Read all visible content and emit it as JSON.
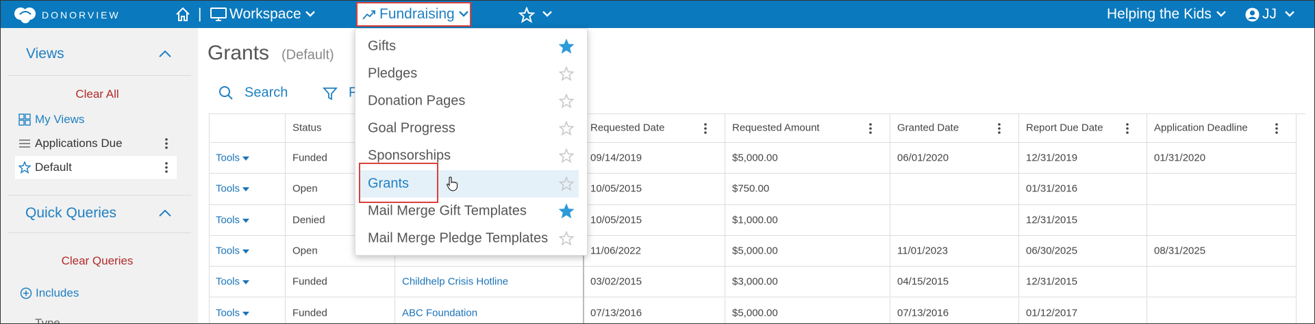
{
  "topbar": {
    "logo": "DONORVIEW",
    "separator": "|",
    "workspace": "Workspace",
    "fundraising": "Fundraising",
    "organization": "Helping the Kids",
    "user": "JJ"
  },
  "sidebar": {
    "views_title": "Views",
    "clear_all": "Clear All",
    "views": [
      {
        "label": "My Views",
        "icon": "grid",
        "menu": false
      },
      {
        "label": "Applications Due",
        "icon": "list",
        "menu": true
      },
      {
        "label": "Default",
        "icon": "star",
        "menu": true,
        "selected": true
      }
    ],
    "quick_queries_title": "Quick Queries",
    "clear_queries": "Clear Queries",
    "includes": "Includes",
    "type_label": "Type"
  },
  "main": {
    "title": "Grants",
    "subtitle": "(Default)",
    "search": "Search",
    "filter": "F"
  },
  "table": {
    "columns": [
      null,
      "Status",
      null,
      "Requested Date",
      "Requested Amount",
      "Granted Date",
      "Report Due Date",
      "Application Deadline"
    ],
    "rows": [
      [
        "Tools",
        "Funded",
        null,
        "09/14/2019",
        "$5,000.00",
        "06/01/2020",
        "12/31/2019",
        "01/31/2020"
      ],
      [
        "Tools",
        "Open",
        null,
        "10/05/2015",
        "$750.00",
        null,
        "01/31/2016",
        null
      ],
      [
        "Tools",
        "Denied",
        null,
        "10/05/2015",
        "$1,000.00",
        null,
        "12/31/2015",
        null
      ],
      [
        "Tools",
        "Open",
        null,
        "11/06/2022",
        "$5,000.00",
        "11/01/2023",
        "06/30/2025",
        "08/31/2025"
      ],
      [
        "Tools",
        "Funded",
        "Childhelp Crisis Hotline",
        "03/02/2015",
        "$3,000.00",
        "04/15/2015",
        "12/31/2015",
        null
      ],
      [
        "Tools",
        "Funded",
        "ABC Foundation",
        "07/13/2016",
        "$5,000.00",
        "07/13/2016",
        "01/12/2017",
        null
      ]
    ]
  },
  "menu": {
    "items": [
      {
        "label": "Gifts",
        "favorite": true
      },
      {
        "label": "Pledges",
        "favorite": false
      },
      {
        "label": "Donation Pages",
        "favorite": false
      },
      {
        "label": "Goal Progress",
        "favorite": false
      },
      {
        "label": "Sponsorships",
        "favorite": false
      },
      {
        "label": "Grants",
        "favorite": false,
        "active": true
      },
      {
        "label": "Mail Merge Gift Templates",
        "favorite": true
      },
      {
        "label": "Mail Merge Pledge Templates",
        "favorite": false
      }
    ]
  }
}
